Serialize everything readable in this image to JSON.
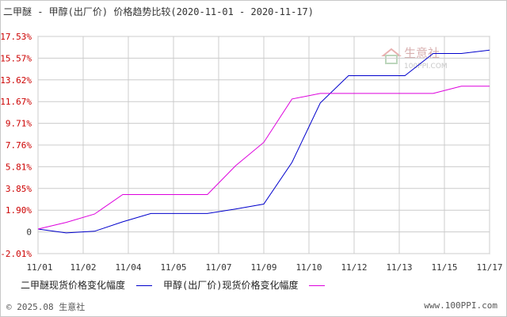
{
  "title": "二甲醚 - 甲醇(出厂价) 价格趋势比较(2020-11-01 - 2020-11-17)",
  "footer": {
    "copyright": "© 2025.08 生意社",
    "site": "www.100PPI.com"
  },
  "watermark": {
    "brand": "生意社",
    "url": "100PPI.COM"
  },
  "colors": {
    "series1": "#0000cc",
    "series2": "#dd00dd",
    "grid": "#cccccc",
    "ytick": "#cc0000"
  },
  "chart_data": {
    "type": "line",
    "title": "二甲醚 - 甲醇(出厂价) 价格趋势比较(2020-11-01 - 2020-11-17)",
    "xlabel": "",
    "ylabel": "",
    "x_ticks": [
      "11/01",
      "11/02",
      "11/04",
      "11/05",
      "11/07",
      "11/09",
      "11/10",
      "11/12",
      "11/13",
      "11/15",
      "11/17"
    ],
    "y_ticks": [
      "17.53%",
      "15.57%",
      "13.62%",
      "11.67%",
      "9.71%",
      "7.76%",
      "5.81%",
      "3.85%",
      "1.90%",
      "0",
      "-2.01%"
    ],
    "ylim": [
      -2.01,
      17.53
    ],
    "grid": true,
    "legend_position": "bottom",
    "x": [
      "11/01",
      "11/02",
      "11/03",
      "11/04",
      "11/05",
      "11/06",
      "11/07",
      "11/08",
      "11/09",
      "11/10",
      "11/11",
      "11/12",
      "11/13",
      "11/14",
      "11/15",
      "11/16",
      "11/17"
    ],
    "series": [
      {
        "name": "二甲醚现货价格变化幅度",
        "values": [
          0.2,
          -0.15,
          0.0,
          0.85,
          1.6,
          1.6,
          1.6,
          2.0,
          2.45,
          6.2,
          11.55,
          14.0,
          14.0,
          14.0,
          16.0,
          16.0,
          16.3
        ]
      },
      {
        "name": "甲醇(出厂价)现货价格变化幅度",
        "values": [
          0.2,
          0.8,
          1.55,
          3.3,
          3.3,
          3.3,
          3.3,
          5.9,
          8.0,
          11.9,
          12.4,
          12.4,
          12.4,
          12.4,
          12.4,
          13.05,
          13.05
        ]
      }
    ]
  }
}
